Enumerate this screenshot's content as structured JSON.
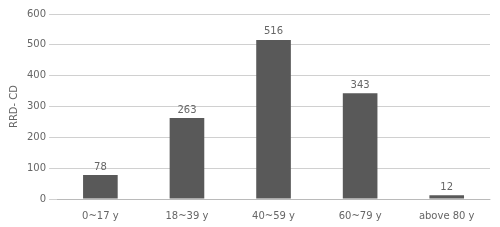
{
  "chart_data": {
    "type": "bar",
    "categories": [
      "0~17 y",
      "18~39 y",
      "40~59 y",
      "60~79 y",
      "above 80 y"
    ],
    "values": [
      78,
      263,
      516,
      343,
      12
    ],
    "color": "#595959",
    "ylabel": "RRD- CD",
    "ylim": [
      0,
      600
    ],
    "yticks": [
      0,
      100,
      200,
      300,
      400,
      500,
      600
    ],
    "grid": true,
    "data_labels": true
  }
}
